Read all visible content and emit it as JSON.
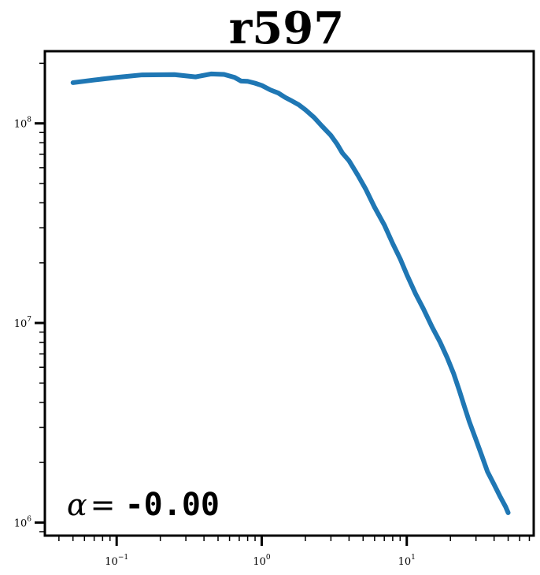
{
  "chart_data": {
    "type": "line",
    "title": "r597",
    "xlabel": "",
    "ylabel": "",
    "xscale": "log",
    "yscale": "log",
    "xlim": [
      0.032,
      75
    ],
    "ylim": [
      860000,
      230000000
    ],
    "grid": false,
    "line_color": "#1f77b4",
    "x_ticks": [
      {
        "base": "10",
        "exp": "−1",
        "value": 0.1
      },
      {
        "base": "10",
        "exp": "0",
        "value": 1
      },
      {
        "base": "10",
        "exp": "1",
        "value": 10
      }
    ],
    "y_ticks": [
      {
        "base": "10",
        "exp": "6",
        "value": 1000000
      },
      {
        "base": "10",
        "exp": "7",
        "value": 10000000
      },
      {
        "base": "10",
        "exp": "8",
        "value": 100000000
      }
    ],
    "annotation": {
      "symbol": "α",
      "equals": " = ",
      "value": "-0.00"
    },
    "series": [
      {
        "x": [
          0.05,
          0.07,
          0.1,
          0.15,
          0.25,
          0.35,
          0.45,
          0.55,
          0.65,
          0.72,
          0.8,
          0.9,
          1.0,
          1.15,
          1.3,
          1.45,
          1.6,
          1.8,
          2.0,
          2.3,
          2.6,
          3.0,
          3.3,
          3.6,
          4.0,
          4.6,
          5.2,
          6.0,
          7.0,
          8.0,
          9.0,
          10.0,
          11.5,
          13.0,
          15.0,
          17.0,
          19.0,
          21.0,
          23.0,
          25.0,
          27.0,
          30.0,
          33.0,
          36.0,
          40.0,
          44.0,
          48.0,
          50.0
        ],
        "y": [
          160000000,
          165000000,
          170000000,
          175000000,
          175500000,
          171000000,
          177000000,
          176000000,
          170000000,
          163000000,
          162500000,
          159000000,
          155000000,
          147000000,
          142000000,
          135000000,
          130000000,
          124000000,
          117000000,
          107000000,
          97000000,
          87000000,
          79000000,
          71000000,
          65000000,
          55000000,
          47000000,
          38000000,
          31000000,
          25000000,
          21000000,
          17500000,
          14000000,
          11800000,
          9500000,
          8000000,
          6700000,
          5600000,
          4600000,
          3800000,
          3200000,
          2600000,
          2150000,
          1800000,
          1550000,
          1350000,
          1200000,
          1120000
        ]
      }
    ]
  }
}
